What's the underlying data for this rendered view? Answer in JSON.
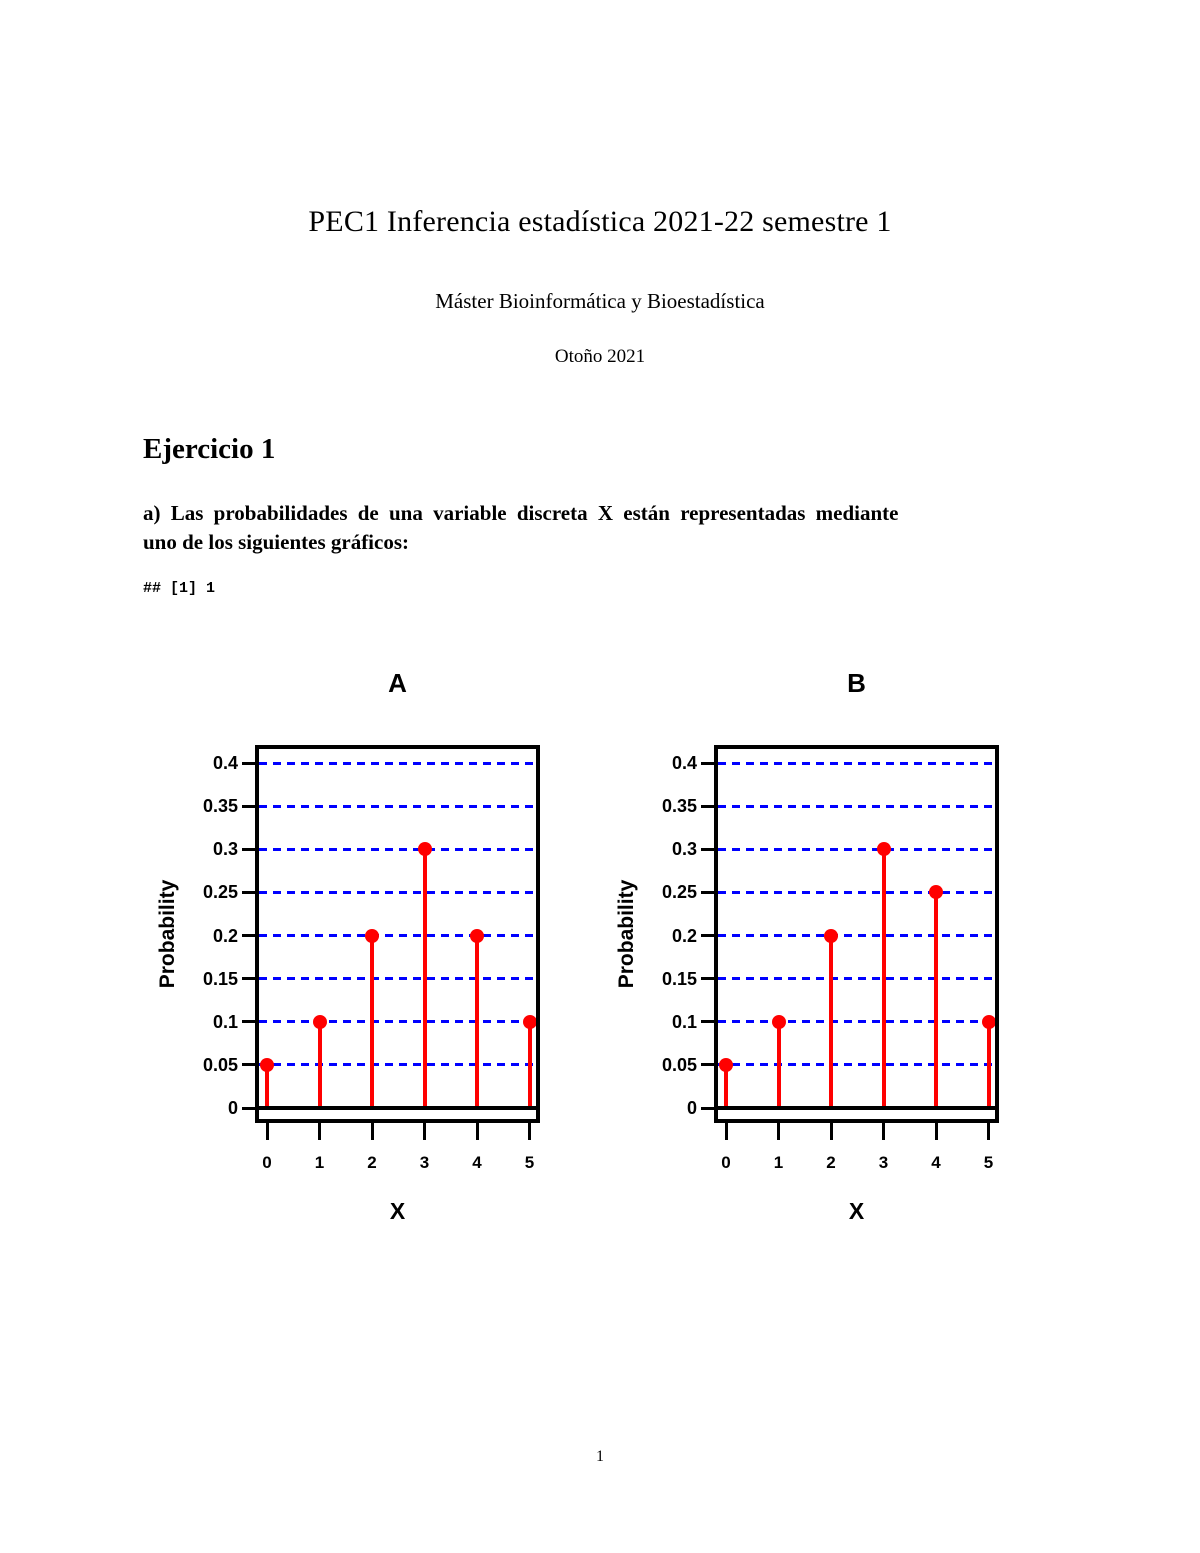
{
  "header": {
    "title": "PEC1 Inferencia estadística 2021-22 semestre 1",
    "subtitle": "Máster Bioinformática y Bioestadística",
    "date": "Otoño 2021"
  },
  "section": {
    "heading": "Ejercicio 1",
    "paragraph_line1": "a) Las probabilidades de una variable discreta X están representadas mediante",
    "paragraph_line2": "uno de los siguientes gráficos:",
    "code_output": "## [1] 1"
  },
  "footer": {
    "page_number": "1"
  },
  "chart_data": [
    {
      "type": "scatter",
      "subtype": "stem-plot",
      "title": "A",
      "xlabel": "X",
      "ylabel": "Probability",
      "x": [
        0,
        1,
        2,
        3,
        4,
        5
      ],
      "values": [
        0.05,
        0.1,
        0.2,
        0.3,
        0.2,
        0.1
      ],
      "xticklabels": [
        "0",
        "1",
        "2",
        "3",
        "4",
        "5"
      ],
      "yticks": [
        0,
        0.05,
        0.1,
        0.15,
        0.2,
        0.25,
        0.3,
        0.35,
        0.4
      ],
      "yticklabels": [
        "0",
        "0.05",
        "0.1",
        "0.15",
        "0.2",
        "0.25",
        "0.3",
        "0.35",
        "0.4"
      ],
      "ylim": [
        -0.017,
        0.421
      ],
      "grid": "horizontal dashed at each nonzero ytick, solid black at 0",
      "legend": null,
      "colors": {
        "stem": "#ff0000",
        "point": "#ff0000",
        "grid": "#0000ff",
        "axis": "#000000"
      }
    },
    {
      "type": "scatter",
      "subtype": "stem-plot",
      "title": "B",
      "xlabel": "X",
      "ylabel": "Probability",
      "x": [
        0,
        1,
        2,
        3,
        4,
        5
      ],
      "values": [
        0.05,
        0.1,
        0.2,
        0.3,
        0.25,
        0.1
      ],
      "xticklabels": [
        "0",
        "1",
        "2",
        "3",
        "4",
        "5"
      ],
      "yticks": [
        0,
        0.05,
        0.1,
        0.15,
        0.2,
        0.25,
        0.3,
        0.35,
        0.4
      ],
      "yticklabels": [
        "0",
        "0.05",
        "0.1",
        "0.15",
        "0.2",
        "0.25",
        "0.3",
        "0.35",
        "0.4"
      ],
      "ylim": [
        -0.017,
        0.421
      ],
      "grid": "horizontal dashed at each nonzero ytick, solid black at 0",
      "legend": null,
      "colors": {
        "stem": "#ff0000",
        "point": "#ff0000",
        "grid": "#0000ff",
        "axis": "#000000"
      }
    }
  ]
}
